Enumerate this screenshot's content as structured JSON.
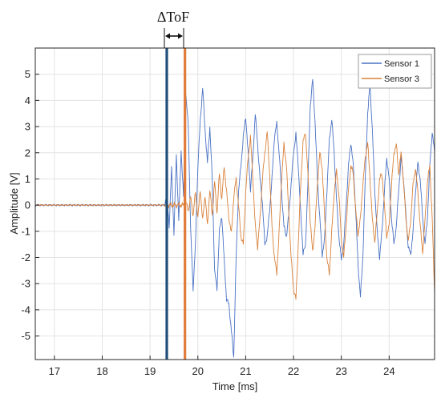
{
  "chart_data": {
    "type": "line",
    "xlabel": "Time [ms]",
    "ylabel": "Amplitude [V]",
    "xlim": [
      16.6,
      24.95
    ],
    "ylim": [
      -5.9,
      6.0
    ],
    "xticks": [
      17,
      18,
      19,
      20,
      21,
      22,
      23,
      24
    ],
    "yticks": [
      -5,
      -4,
      -3,
      -2,
      -1,
      0,
      1,
      2,
      3,
      4,
      5
    ],
    "grid": true,
    "legend_position": "top-right",
    "annotation": {
      "label": "ΔToF",
      "marker_times": [
        19.35,
        19.73
      ],
      "marker_colors": [
        "#1f4e79",
        "#e07b39"
      ]
    },
    "series": [
      {
        "name": "Sensor 1",
        "color": "#4a72c4",
        "points": [
          [
            16.6,
            0.0
          ],
          [
            19.3,
            0.0
          ],
          [
            19.35,
            0.4
          ],
          [
            19.4,
            -0.8
          ],
          [
            19.45,
            1.4
          ],
          [
            19.5,
            -1.1
          ],
          [
            19.55,
            1.9
          ],
          [
            19.6,
            -0.6
          ],
          [
            19.65,
            2.1
          ],
          [
            19.7,
            0.3
          ],
          [
            19.75,
            4.2
          ],
          [
            19.8,
            3.0
          ],
          [
            19.85,
            -1.0
          ],
          [
            19.9,
            -3.2
          ],
          [
            19.95,
            -1.5
          ],
          [
            20.0,
            1.5
          ],
          [
            20.05,
            3.2
          ],
          [
            20.1,
            4.5
          ],
          [
            20.15,
            2.9
          ],
          [
            20.2,
            1.6
          ],
          [
            20.25,
            3.0
          ],
          [
            20.3,
            1.0
          ],
          [
            20.35,
            -2.5
          ],
          [
            20.4,
            -3.2
          ],
          [
            20.45,
            -1.0
          ],
          [
            20.5,
            -0.4
          ],
          [
            20.55,
            -2.1
          ],
          [
            20.6,
            -3.6
          ],
          [
            20.65,
            -3.8
          ],
          [
            20.7,
            -4.8
          ],
          [
            20.75,
            -5.8
          ],
          [
            20.8,
            -2.0
          ],
          [
            20.85,
            0.5
          ],
          [
            20.9,
            1.5
          ],
          [
            20.95,
            2.6
          ],
          [
            21.0,
            3.4
          ],
          [
            21.05,
            2.0
          ],
          [
            21.1,
            0.6
          ],
          [
            21.15,
            1.8
          ],
          [
            21.2,
            3.5
          ],
          [
            21.25,
            2.3
          ],
          [
            21.3,
            1.0
          ],
          [
            21.35,
            0.1
          ],
          [
            21.4,
            -1.5
          ],
          [
            21.45,
            -1.2
          ],
          [
            21.5,
            -0.2
          ],
          [
            21.55,
            1.0
          ],
          [
            21.6,
            2.6
          ],
          [
            21.65,
            3.1
          ],
          [
            21.7,
            2.0
          ],
          [
            21.75,
            0.5
          ],
          [
            21.8,
            -0.8
          ],
          [
            21.85,
            -1.2
          ],
          [
            21.9,
            -0.4
          ],
          [
            21.95,
            0.8
          ],
          [
            22.0,
            2.0
          ],
          [
            22.05,
            2.7
          ],
          [
            22.1,
            1.5
          ],
          [
            22.15,
            -0.3
          ],
          [
            22.2,
            -1.8
          ],
          [
            22.25,
            -1.6
          ],
          [
            22.3,
            0.8
          ],
          [
            22.35,
            3.8
          ],
          [
            22.4,
            4.8
          ],
          [
            22.45,
            3.2
          ],
          [
            22.5,
            1.0
          ],
          [
            22.55,
            -0.5
          ],
          [
            22.6,
            -1.9
          ],
          [
            22.65,
            -1.3
          ],
          [
            22.7,
            0.6
          ],
          [
            22.75,
            2.5
          ],
          [
            22.8,
            3.3
          ],
          [
            22.85,
            2.0
          ],
          [
            22.9,
            0.2
          ],
          [
            22.95,
            -1.2
          ],
          [
            23.0,
            -2.1
          ],
          [
            23.05,
            -1.5
          ],
          [
            23.1,
            0.0
          ],
          [
            23.15,
            1.5
          ],
          [
            23.2,
            2.4
          ],
          [
            23.25,
            1.5
          ],
          [
            23.3,
            -0.2
          ],
          [
            23.35,
            -2.3
          ],
          [
            23.4,
            -3.5
          ],
          [
            23.45,
            -2.0
          ],
          [
            23.5,
            1.0
          ],
          [
            23.55,
            3.5
          ],
          [
            23.6,
            4.6
          ],
          [
            23.65,
            2.8
          ],
          [
            23.7,
            0.5
          ],
          [
            23.75,
            -1.0
          ],
          [
            23.8,
            -2.0
          ],
          [
            23.85,
            -1.0
          ],
          [
            23.9,
            0.5
          ],
          [
            23.95,
            1.8
          ],
          [
            24.0,
            1.0
          ],
          [
            24.05,
            -0.5
          ],
          [
            24.1,
            -1.5
          ],
          [
            24.15,
            -0.8
          ],
          [
            24.2,
            0.6
          ],
          [
            24.25,
            1.8
          ],
          [
            24.3,
            1.0
          ],
          [
            24.35,
            -0.4
          ],
          [
            24.4,
            -1.6
          ],
          [
            24.45,
            -1.9
          ],
          [
            24.5,
            -1.0
          ],
          [
            24.55,
            0.5
          ],
          [
            24.6,
            1.6
          ],
          [
            24.65,
            1.0
          ],
          [
            24.7,
            -0.5
          ],
          [
            24.75,
            -1.5
          ],
          [
            24.8,
            -0.5
          ],
          [
            24.85,
            1.5
          ],
          [
            24.9,
            2.8
          ],
          [
            24.95,
            2.0
          ]
        ]
      },
      {
        "name": "Sensor 3",
        "color": "#d9823b",
        "points": [
          [
            16.6,
            0.0
          ],
          [
            19.7,
            0.0
          ],
          [
            19.75,
            0.1
          ],
          [
            19.8,
            -0.2
          ],
          [
            19.85,
            0.3
          ],
          [
            19.9,
            -0.4
          ],
          [
            19.95,
            0.5
          ],
          [
            20.0,
            -0.5
          ],
          [
            20.05,
            0.6
          ],
          [
            20.1,
            -0.6
          ],
          [
            20.15,
            0.4
          ],
          [
            20.2,
            -0.8
          ],
          [
            20.25,
            0.6
          ],
          [
            20.3,
            -0.4
          ],
          [
            20.35,
            0.9
          ],
          [
            20.4,
            -0.3
          ],
          [
            20.45,
            1.2
          ],
          [
            20.5,
            0.2
          ],
          [
            20.55,
            1.5
          ],
          [
            20.6,
            0.5
          ],
          [
            20.65,
            -0.5
          ],
          [
            20.7,
            -1.1
          ],
          [
            20.75,
            0.3
          ],
          [
            20.8,
            1.0
          ],
          [
            20.85,
            0.0
          ],
          [
            20.9,
            -1.2
          ],
          [
            20.95,
            -1.5
          ],
          [
            21.0,
            0.5
          ],
          [
            21.05,
            1.8
          ],
          [
            21.1,
            2.6
          ],
          [
            21.15,
            1.0
          ],
          [
            21.2,
            -0.8
          ],
          [
            21.25,
            -1.6
          ],
          [
            21.3,
            -0.5
          ],
          [
            21.35,
            1.0
          ],
          [
            21.4,
            2.0
          ],
          [
            21.45,
            2.8
          ],
          [
            21.5,
            1.2
          ],
          [
            21.55,
            -0.8
          ],
          [
            21.6,
            -2.0
          ],
          [
            21.65,
            -2.6
          ],
          [
            21.7,
            -1.0
          ],
          [
            21.75,
            1.0
          ],
          [
            21.8,
            2.3
          ],
          [
            21.85,
            1.6
          ],
          [
            21.9,
            -0.3
          ],
          [
            21.95,
            -2.0
          ],
          [
            22.0,
            -3.2
          ],
          [
            22.05,
            -3.6
          ],
          [
            22.1,
            -1.5
          ],
          [
            22.15,
            0.8
          ],
          [
            22.2,
            2.4
          ],
          [
            22.25,
            2.8
          ],
          [
            22.3,
            1.2
          ],
          [
            22.35,
            -0.6
          ],
          [
            22.4,
            -1.8
          ],
          [
            22.45,
            -0.8
          ],
          [
            22.5,
            0.8
          ],
          [
            22.55,
            2.0
          ],
          [
            22.6,
            1.4
          ],
          [
            22.65,
            -0.4
          ],
          [
            22.7,
            -2.1
          ],
          [
            22.75,
            -2.6
          ],
          [
            22.8,
            -1.0
          ],
          [
            22.85,
            0.5
          ],
          [
            22.9,
            1.3
          ],
          [
            22.95,
            0.4
          ],
          [
            23.0,
            -1.3
          ],
          [
            23.05,
            -2.0
          ],
          [
            23.1,
            -0.8
          ],
          [
            23.15,
            0.6
          ],
          [
            23.2,
            1.5
          ],
          [
            23.25,
            1.2
          ],
          [
            23.3,
            -0.2
          ],
          [
            23.35,
            -1.1
          ],
          [
            23.4,
            -0.5
          ],
          [
            23.45,
            0.8
          ],
          [
            23.5,
            1.8
          ],
          [
            23.55,
            2.4
          ],
          [
            23.6,
            1.0
          ],
          [
            23.65,
            -0.6
          ],
          [
            23.7,
            -1.4
          ],
          [
            23.75,
            -0.3
          ],
          [
            23.8,
            1.0
          ],
          [
            23.85,
            1.2
          ],
          [
            23.9,
            0.0
          ],
          [
            23.95,
            -1.2
          ],
          [
            24.0,
            -0.8
          ],
          [
            24.05,
            0.8
          ],
          [
            24.1,
            2.0
          ],
          [
            24.15,
            2.3
          ],
          [
            24.2,
            1.2
          ],
          [
            24.25,
            2.0
          ],
          [
            24.3,
            0.9
          ],
          [
            24.35,
            -0.5
          ],
          [
            24.4,
            -1.4
          ],
          [
            24.45,
            -0.6
          ],
          [
            24.5,
            0.8
          ],
          [
            24.55,
            1.4
          ],
          [
            24.6,
            0.5
          ],
          [
            24.65,
            -0.8
          ],
          [
            24.7,
            -1.8
          ],
          [
            24.75,
            -0.6
          ],
          [
            24.8,
            0.9
          ],
          [
            24.85,
            1.5
          ],
          [
            24.9,
            -0.5
          ],
          [
            24.95,
            -3.4
          ]
        ]
      }
    ]
  }
}
